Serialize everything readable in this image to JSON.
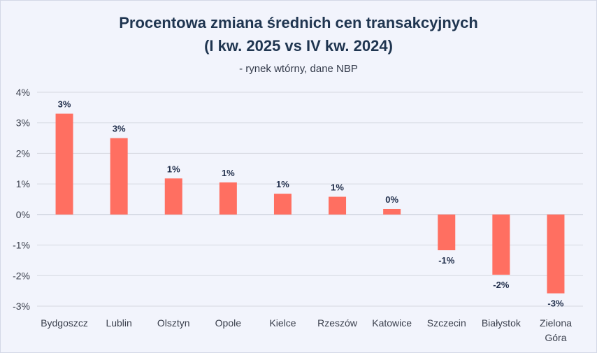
{
  "chart_data": {
    "type": "bar",
    "title": "Procentowa zmiana średnich cen transakcyjnych",
    "title_line2": "(I kw. 2025 vs IV kw. 2024)",
    "subtitle": "- rynek wtórny, dane NBP",
    "xlabel": "",
    "ylabel": "",
    "ylim": [
      -3,
      4
    ],
    "yticks": [
      "4%",
      "3%",
      "2%",
      "1%",
      "0%",
      "-1%",
      "-2%",
      "-3%"
    ],
    "grid": true,
    "bar_color": "#ff6f61",
    "categories": [
      [
        "Bydgoszcz"
      ],
      [
        "Lublin"
      ],
      [
        "Olsztyn"
      ],
      [
        "Opole"
      ],
      [
        "Kielce"
      ],
      [
        "Rzeszów"
      ],
      [
        "Katowice"
      ],
      [
        "Szczecin"
      ],
      [
        "Białystok"
      ],
      [
        "Zielona",
        "Góra"
      ]
    ],
    "values": [
      3.3,
      2.5,
      1.18,
      1.05,
      0.68,
      0.58,
      0.18,
      -1.17,
      -1.97,
      -2.58
    ],
    "data_labels": [
      "3%",
      "3%",
      "1%",
      "1%",
      "1%",
      "1%",
      "0%",
      "-1%",
      "-2%",
      "-3%"
    ]
  }
}
